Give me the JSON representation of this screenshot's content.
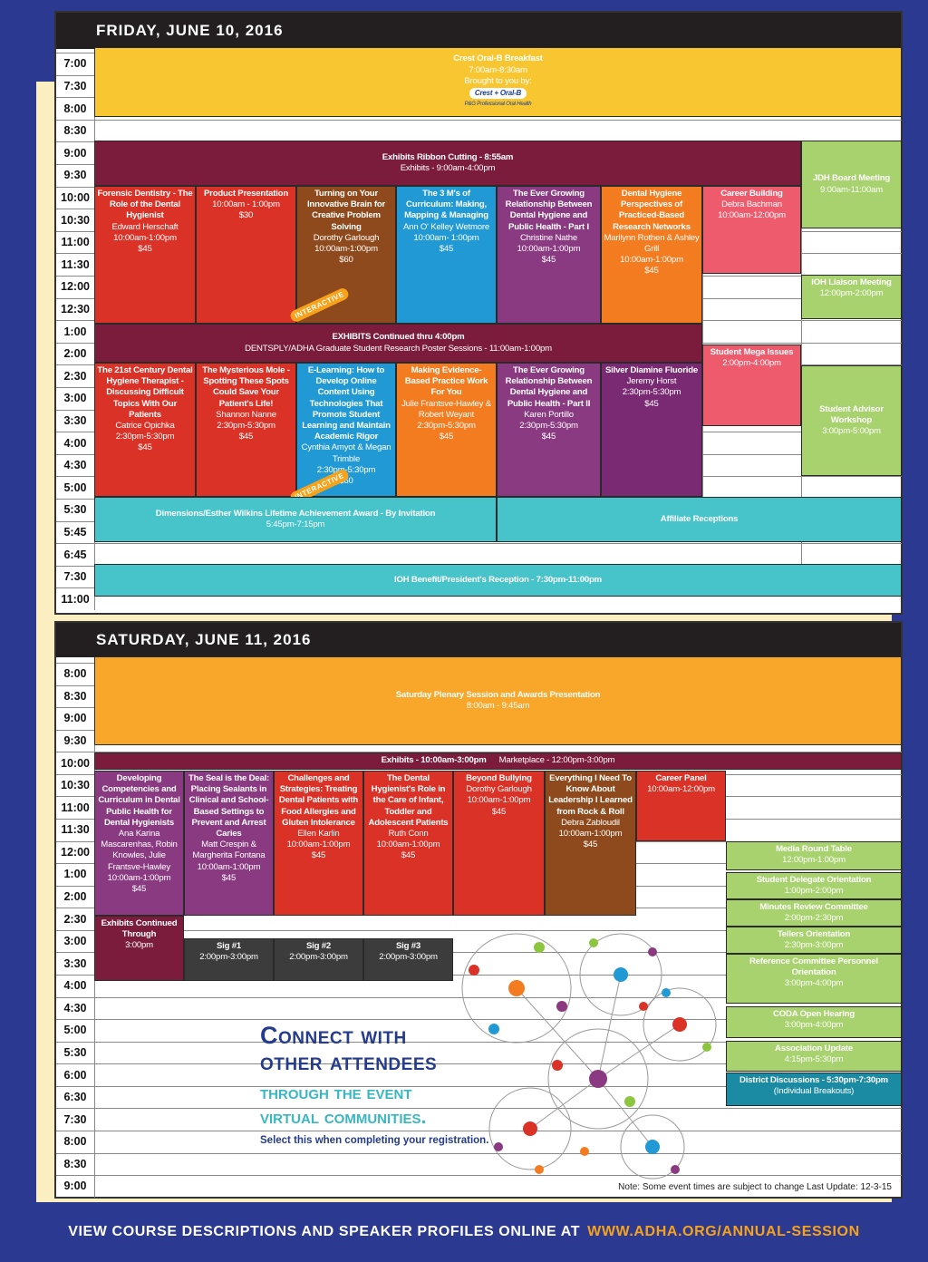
{
  "friday": {
    "title": "FRIDAY, JUNE 10, 2016",
    "times": [
      "7:00",
      "7:30",
      "8:00",
      "8:30",
      "9:00",
      "9:30",
      "10:00",
      "10:30",
      "11:00",
      "11:30",
      "12:00",
      "12:30",
      "1:00",
      "2:00",
      "2:30",
      "3:00",
      "3:30",
      "4:00",
      "4:30",
      "5:00",
      "5:30",
      "5:45",
      "6:45",
      "7:30",
      "11:00"
    ],
    "events": [
      {
        "title": "Crest Oral-B Breakfast",
        "details": [
          "7:00am-8:30am",
          "Brought to you by:"
        ],
        "sponsor": [
          "Crest + Oral-B",
          "P&G Professional Oral Health"
        ]
      },
      {
        "title": "Exhibits Ribbon Cutting - 8:55am",
        "details": [
          "Exhibits - 9:00am-4:00pm"
        ]
      },
      {
        "title": "JDH Board Meeting",
        "details": [
          "9:00am-11:00am"
        ]
      },
      {
        "title": "Forensic Dentistry - The Role of the Dental Hygienist",
        "details": [
          "Edward Herschaft",
          "10:00am-1:00pm",
          "$45"
        ]
      },
      {
        "title": "Product Presentation",
        "details": [
          "10:00am - 1:00pm",
          "$30"
        ]
      },
      {
        "title": "Turning on Your Innovative Brain for Creative Problem Solving",
        "details": [
          "Dorothy Garlough",
          "10:00am-1:00pm",
          "$60"
        ],
        "badge": "INTERACTIVE"
      },
      {
        "title": "The 3 M's of Curriculum: Making, Mapping & Managing",
        "details": [
          "Ann O' Kelley Wetmore",
          "10:00am- 1:00pm",
          "$45"
        ]
      },
      {
        "title": "The Ever Growing Relationship Between Dental Hygiene and Public Health - Part I",
        "details": [
          "Christine Nathe",
          "10:00am-1:00pm",
          "$45"
        ]
      },
      {
        "title": "Dental Hygiene Perspectives of Practiced-Based Research Networks",
        "details": [
          "Marilynn Rothen & Ashley Grill",
          "10:00am-1:00pm",
          "$45"
        ]
      },
      {
        "title": "Career Building",
        "details": [
          "Debra Bachman",
          "10:00am-12:00pm"
        ]
      },
      {
        "title": "IOH Liaison Meeting",
        "details": [
          "12:00pm-2:00pm"
        ]
      },
      {
        "title": "EXHIBITS Continued thru 4:00pm",
        "details": [
          "DENTSPLY/ADHA Graduate Student Research Poster Sessions - 11:00am-1:00pm"
        ]
      },
      {
        "title": "Student Mega Issues",
        "details": [
          "2:00pm-4:00pm"
        ]
      },
      {
        "title": "The 21st Century Dental Hygiene Therapist - Discussing Difficult Topics With Our Patients",
        "details": [
          "Catrice Opichka",
          "2:30pm-5:30pm",
          "$45"
        ]
      },
      {
        "title": "The Mysterious Mole - Spotting These Spots Could Save Your Patient's Life!",
        "details": [
          "Shannon Nanne",
          "2:30pm-5:30pm",
          "$45"
        ]
      },
      {
        "title": "E-Learning: How to Develop Online Content Using Technologies That Promote Student Learning and Maintain Academic Rigor",
        "details": [
          "Cynthia Amyot & Megan Trimble",
          "2:30pm-5:30pm",
          "$60"
        ],
        "badge": "INTERACTIVE"
      },
      {
        "title": "Making Evidence-Based Practice Work For You",
        "details": [
          "Julie Frantsve-Hawley & Robert Weyant",
          "2:30pm-5:30pm",
          "$45"
        ]
      },
      {
        "title": "The Ever Growing Relationship Between Dental Hygiene and Public Health - Part II",
        "details": [
          "Karen Portillo",
          "2:30pm-5:30pm",
          "$45"
        ]
      },
      {
        "title": "Silver Diamine Fluoride",
        "details": [
          "Jeremy Horst",
          "2:30pm-5:30pm",
          "$45"
        ]
      },
      {
        "title": "Student Advisor Workshop",
        "details": [
          "3:00pm-5:00pm"
        ]
      },
      {
        "title": "Dimensions/Esther Wilkins Lifetime Achievement Award - By Invitation",
        "details": [
          "5:45pm-7:15pm"
        ]
      },
      {
        "title": "Affiliate Receptions",
        "details": []
      },
      {
        "title": "IOH Benefit/President's Reception - 7:30pm-11:00pm",
        "details": []
      }
    ]
  },
  "saturday": {
    "title": "SATURDAY, JUNE 11, 2016",
    "times": [
      "8:00",
      "8:30",
      "9:00",
      "9:30",
      "10:00",
      "10:30",
      "11:00",
      "11:30",
      "12:00",
      "1:00",
      "2:00",
      "2:30",
      "3:00",
      "3:30",
      "4:00",
      "4:30",
      "5:00",
      "5:30",
      "6:00",
      "6:30",
      "7:30",
      "8:00",
      "8:30",
      "9:00"
    ],
    "events": [
      {
        "title": "Saturday Plenary Session and Awards Presentation",
        "details": [
          "8:00am - 9:45am"
        ]
      },
      {
        "title": "Exhibits - 10:00am-3:00pm",
        "details": [
          "Marketplace - 12:00pm-3:00pm"
        ]
      },
      {
        "title": "Developing Competencies and Curriculum in Dental Public Health for Dental Hygienists",
        "details": [
          "Ana Karina Mascarenhas, Robin Knowles, Julie Frantsve-Hawley",
          "10:00am-1:00pm",
          "$45"
        ]
      },
      {
        "title": "The Seal is the Deal: Placing Sealants in Clinical and School-Based Settings to Prevent and Arrest Caries",
        "details": [
          "Matt Crespin & Margherita Fontana",
          "10:00am-1:00pm",
          "$45"
        ]
      },
      {
        "title": "Challenges and Strategies: Treating Dental Patients with Food Allergies and Gluten Intolerance",
        "details": [
          "Ellen Karlin",
          "10:00am-1:00pm",
          "$45"
        ]
      },
      {
        "title": "The Dental Hygienist's Role in the Care of Infant, Toddler and Adolescent Patients",
        "details": [
          "Ruth Conn",
          "10:00am-1:00pm",
          "$45"
        ]
      },
      {
        "title": "Beyond Bullying",
        "details": [
          "Dorothy Garlough",
          "10:00am-1:00pm",
          "$45"
        ]
      },
      {
        "title": "Everything I Need To Know About Leadership I Learned from Rock & Roll",
        "details": [
          "Debra Zabloudil",
          "10:00am-1:00pm",
          "$45"
        ]
      },
      {
        "title": "Career Panel",
        "details": [
          "10:00am-12:00pm"
        ]
      },
      {
        "title": "Media Round Table",
        "details": [
          "12:00pm-1:00pm"
        ]
      },
      {
        "title": "Student Delegate Orientation",
        "details": [
          "1:00pm-2:00pm"
        ]
      },
      {
        "title": "Minutes Review Committee",
        "details": [
          "2:00pm-2:30pm"
        ]
      },
      {
        "title": "Tellers Orientation",
        "details": [
          "2:30pm-3:00pm"
        ]
      },
      {
        "title": "Reference Committee Personnel Orientation",
        "details": [
          "3:00pm-4:00pm"
        ]
      },
      {
        "title": "CODA Open Hearing",
        "details": [
          "3:00pm-4:00pm"
        ]
      },
      {
        "title": "Association Update",
        "details": [
          "4:15pm-5:30pm"
        ]
      },
      {
        "title": "District Discussions - 5:30pm-7:30pm",
        "details": [
          "(Individual Breakouts)"
        ]
      },
      {
        "title": "Exhibits Continued Through",
        "details": [
          "3:00pm"
        ]
      },
      {
        "title": "Sig #1",
        "details": [
          "2:00pm-3:00pm"
        ]
      },
      {
        "title": "Sig #2",
        "details": [
          "2:00pm-3:00pm"
        ]
      },
      {
        "title": "Sig #3",
        "details": [
          "2:00pm-3:00pm"
        ]
      }
    ]
  },
  "connect": {
    "heading": [
      "Connect with",
      "other attendees"
    ],
    "subheading": [
      "through the event",
      "virtual communities."
    ],
    "note": "Select this when completing your registration."
  },
  "disclaimer": "Note: Some event times are subject to change Last Update: 12-3-15",
  "footer": {
    "text": "VIEW COURSE DESCRIPTIONS AND SPEAKER PROFILES ONLINE AT",
    "url": "WWW.ADHA.ORG/ANNUAL-SESSION"
  }
}
